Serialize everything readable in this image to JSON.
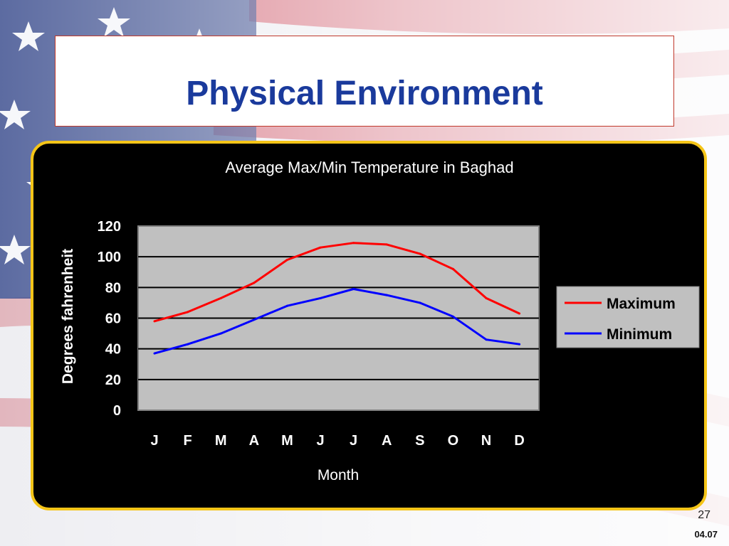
{
  "slide": {
    "title": "Physical Environment",
    "page_number": "27",
    "footer_date": "04.07"
  },
  "colors": {
    "title": "#1a3a9c",
    "frame_border": "#f5c518",
    "plot_bg": "#c0c0c0",
    "max_line": "#ff0000",
    "min_line": "#0000ff"
  },
  "chart_data": {
    "type": "line",
    "title": "Average Max/Min Temperature in Baghad",
    "xlabel": "Month",
    "ylabel": "Degrees  fahrenheit",
    "categories": [
      "J",
      "F",
      "M",
      "A",
      "M",
      "J",
      "J",
      "A",
      "S",
      "O",
      "N",
      "D"
    ],
    "ylim": [
      0,
      120
    ],
    "yticks": [
      0,
      20,
      40,
      60,
      80,
      100,
      120
    ],
    "grid": true,
    "legend_position": "right",
    "series": [
      {
        "name": "Maximum",
        "color": "#ff0000",
        "values": [
          58,
          64,
          73,
          83,
          98,
          106,
          109,
          108,
          102,
          92,
          73,
          63
        ]
      },
      {
        "name": "Minimum",
        "color": "#0000ff",
        "values": [
          37,
          43,
          50,
          59,
          68,
          73,
          79,
          75,
          70,
          61,
          46,
          43
        ]
      }
    ]
  }
}
